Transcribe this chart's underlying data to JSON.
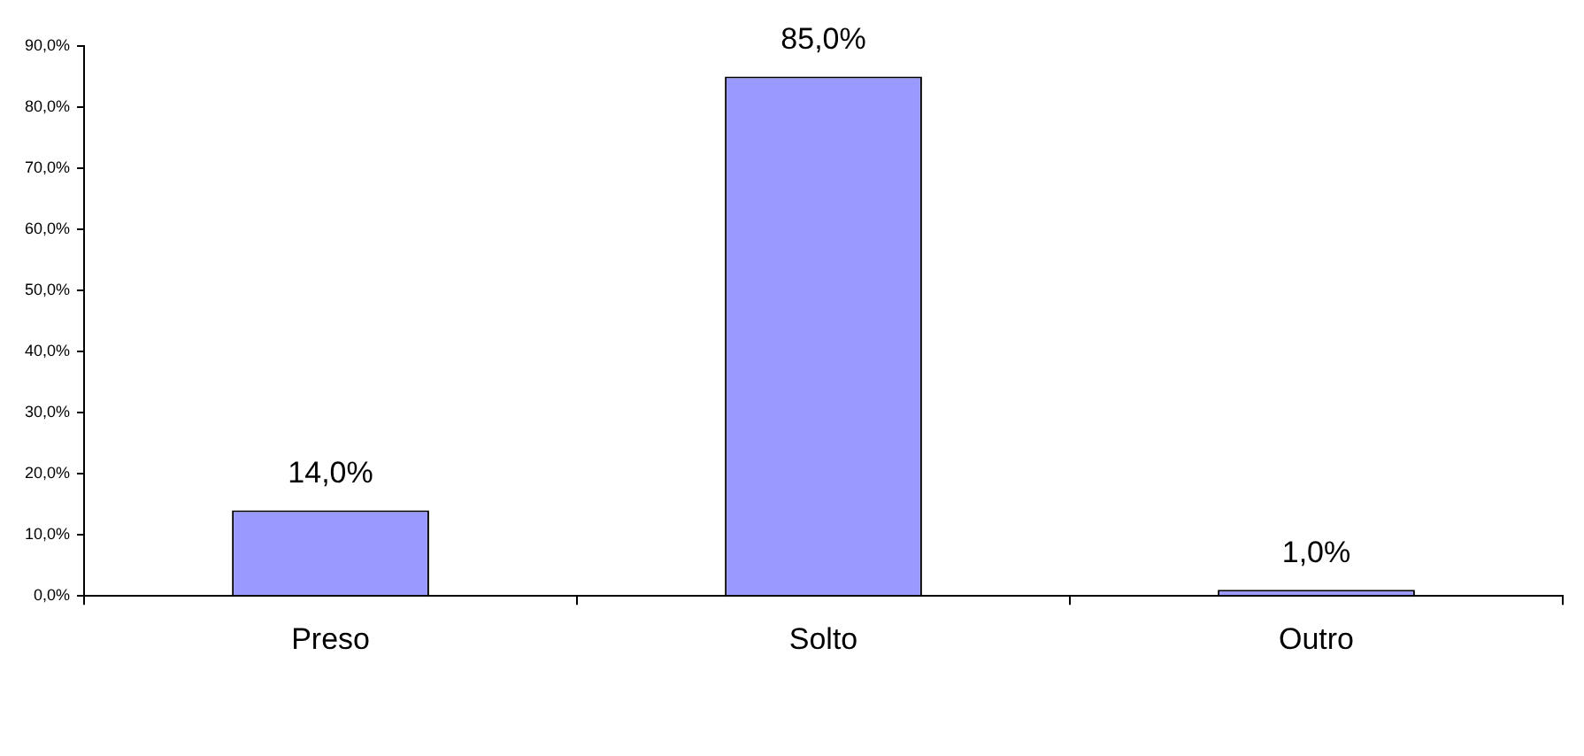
{
  "chart_data": {
    "type": "bar",
    "categories": [
      "Preso",
      "Solto",
      "Outro"
    ],
    "values": [
      14,
      85,
      1
    ],
    "value_labels": [
      "14,0%",
      "85,0%",
      "1,0%"
    ],
    "color": "#9999ff",
    "ylim": [
      0,
      90
    ],
    "yticks": [
      {
        "value": 0,
        "label": "0,0%"
      },
      {
        "value": 10,
        "label": "10,0%"
      },
      {
        "value": 20,
        "label": "20,0%"
      },
      {
        "value": 30,
        "label": "30,0%"
      },
      {
        "value": 40,
        "label": "40,0%"
      },
      {
        "value": 50,
        "label": "50,0%"
      },
      {
        "value": 60,
        "label": "60,0%"
      },
      {
        "value": 70,
        "label": "70,0%"
      },
      {
        "value": 80,
        "label": "80,0%"
      },
      {
        "value": 90,
        "label": "90,0%"
      }
    ],
    "grid": false,
    "legend": false
  }
}
